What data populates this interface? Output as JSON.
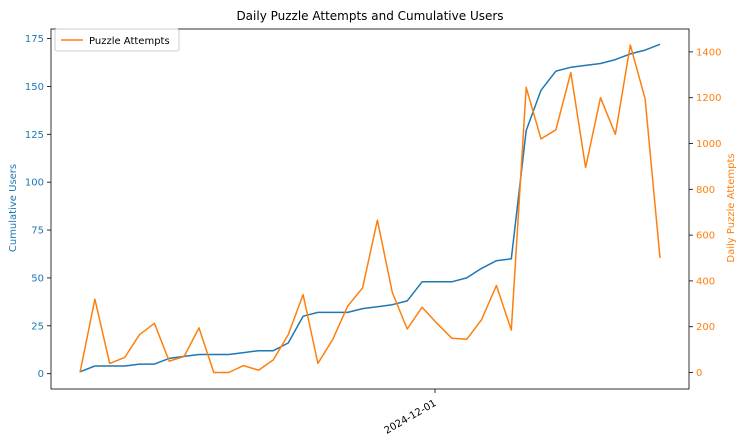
{
  "chart_data": {
    "type": "line",
    "title": "Daily Puzzle Attempts and Cumulative Users",
    "x_tick_labels": [
      "2024-12-01"
    ],
    "series": [
      {
        "name": "Cumulative Users",
        "axis": "left",
        "color": "#1f77b4",
        "values": [
          1,
          4,
          4,
          4,
          5,
          5,
          8,
          9,
          10,
          10,
          10,
          11,
          12,
          12,
          16,
          30,
          32,
          32,
          32,
          34,
          35,
          36,
          38,
          48,
          48,
          48,
          50,
          55,
          59,
          60,
          127,
          148,
          158,
          160,
          161,
          162,
          164,
          167,
          169,
          172
        ]
      },
      {
        "name": "Puzzle Attempts",
        "axis": "right",
        "color": "#ff7f0e",
        "values": [
          0,
          320,
          40,
          65,
          165,
          215,
          50,
          70,
          195,
          0,
          0,
          30,
          10,
          55,
          165,
          340,
          40,
          145,
          290,
          370,
          665,
          350,
          190,
          285,
          215,
          150,
          145,
          230,
          380,
          185,
          1245,
          1020,
          1060,
          1310,
          895,
          1200,
          1040,
          1430,
          1195,
          500
        ]
      }
    ],
    "left_axis": {
      "label": "Cumulative Users",
      "ylim": [
        -8,
        180
      ],
      "ticks": [
        0,
        25,
        50,
        75,
        100,
        125,
        150,
        175
      ],
      "color": "#1f77b4"
    },
    "right_axis": {
      "label": "Daily Puzzle Attempts",
      "ylim": [
        -72,
        1500
      ],
      "ticks": [
        0,
        200,
        400,
        600,
        800,
        1000,
        1200,
        1400
      ],
      "color": "#ff7f0e"
    },
    "legend": {
      "placement": "top-left",
      "entries": [
        "Puzzle Attempts"
      ]
    },
    "grid": false
  }
}
